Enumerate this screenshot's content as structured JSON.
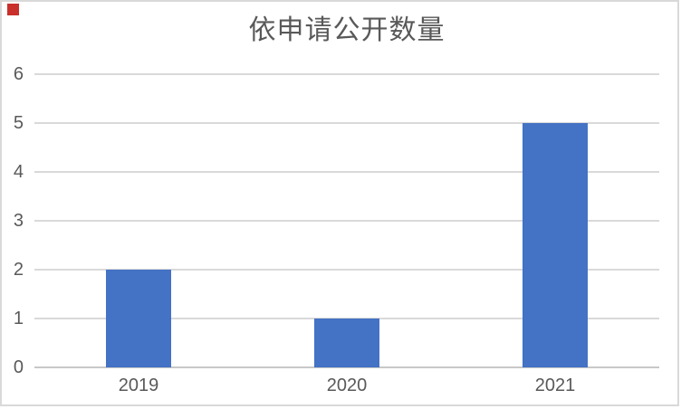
{
  "chart_data": {
    "type": "bar",
    "title": "依申请公开数量",
    "categories": [
      "2019",
      "2020",
      "2021"
    ],
    "values": [
      2,
      1,
      5
    ],
    "xlabel": "",
    "ylabel": "",
    "ylim": [
      0,
      6
    ],
    "yticks": [
      "0",
      "1",
      "2",
      "3",
      "4",
      "5",
      "6"
    ],
    "grid": true,
    "legend": false,
    "bar_color": "#4472C4"
  },
  "colors": {
    "bar": "#4472C4",
    "title_text": "#595959",
    "tick_text": "#595959",
    "gridline": "#d9d9d9",
    "axis_line": "#c8c8c8",
    "frame_border": "#d9d9d9",
    "background": "#ffffff",
    "corner_marker_red": "#c9302c"
  },
  "icons": {
    "corner_marker": "red-square-marker"
  }
}
